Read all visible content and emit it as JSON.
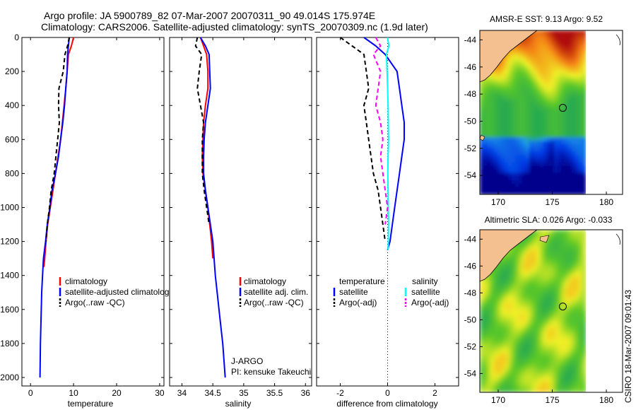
{
  "title": {
    "line1": "Argo profile: JA 5900789_82 07-Mar-2007 20070311_90 49.014S 175.974E",
    "line2": "Climatology: CARS2006. Satellite-adjusted climatology: synTS_20070309.nc (1.9d later)"
  },
  "side_label": "CSIRO 18-Mar-2007 09:01:43",
  "colors": {
    "climatology": "#ff0000",
    "satellite": "#0000ff",
    "argo": "#000000",
    "sat_salinity": "#00ffff",
    "argo_salinity": "#ff00ff",
    "land": "#f5c090"
  },
  "chart_data": [
    {
      "type": "line",
      "name": "temperature-panel",
      "xlabel": "temperature",
      "ylabel": "",
      "xlim": [
        -2,
        31
      ],
      "ylim": [
        2050,
        0
      ],
      "xticks": [
        0,
        10,
        20,
        30
      ],
      "yticks": [
        0,
        200,
        400,
        600,
        800,
        1000,
        1200,
        1400,
        1600,
        1800,
        2000
      ],
      "series": [
        {
          "name": "climatology",
          "style": "solid",
          "color": "#ff0000",
          "x": [
            10.0,
            9.5,
            8.8,
            8.5,
            8.2,
            7.8,
            7.4,
            7.0,
            6.4,
            5.8,
            5.2,
            4.6,
            4.0,
            3.6,
            3.3,
            3.1
          ],
          "y": [
            0,
            50,
            100,
            200,
            300,
            400,
            500,
            600,
            700,
            800,
            900,
            1000,
            1100,
            1200,
            1300,
            1350
          ]
        },
        {
          "name": "satellite-adjusted climatology",
          "style": "solid",
          "color": "#0000ff",
          "x": [
            9.0,
            8.8,
            8.6,
            8.5,
            8.2,
            7.9,
            7.5,
            7.0,
            6.5,
            5.8,
            5.0,
            4.5,
            3.9,
            3.5,
            3.0,
            2.8,
            2.6,
            2.5,
            2.4,
            2.3,
            2.2
          ],
          "y": [
            0,
            50,
            100,
            200,
            300,
            400,
            500,
            600,
            700,
            800,
            900,
            1000,
            1100,
            1200,
            1300,
            1400,
            1500,
            1600,
            1700,
            1800,
            2000
          ]
        },
        {
          "name": "Argo(..raw -QC)",
          "style": "dashed",
          "color": "#000000",
          "x": [
            9.0,
            8.6,
            8.0,
            7.6,
            6.6,
            6.5,
            6.7,
            6.3,
            5.9,
            5.5,
            4.8,
            4.4,
            3.9,
            3.6
          ],
          "y": [
            0,
            50,
            100,
            200,
            300,
            400,
            500,
            600,
            700,
            800,
            900,
            1000,
            1100,
            1200
          ]
        }
      ],
      "legend": [
        "climatology",
        "satellite-adjusted climatolog",
        "Argo(..raw -QC)"
      ],
      "legend_position": "lower-right"
    },
    {
      "type": "line",
      "name": "salinity-panel",
      "xlabel": "salinity",
      "ylabel": "",
      "xlim": [
        33.8,
        36.1
      ],
      "ylim": [
        2050,
        0
      ],
      "xticks": [
        34,
        34.5,
        35,
        35.5,
        36
      ],
      "series": [
        {
          "name": "climatology",
          "style": "solid",
          "color": "#ff0000",
          "x": [
            34.3,
            34.35,
            34.4,
            34.42,
            34.42,
            34.38,
            34.35,
            34.34,
            34.33,
            34.34,
            34.38,
            34.42,
            34.45,
            34.48,
            34.5
          ],
          "y": [
            0,
            50,
            100,
            200,
            300,
            400,
            500,
            600,
            700,
            800,
            900,
            1000,
            1100,
            1200,
            1300
          ]
        },
        {
          "name": "satellite adj. clim.",
          "style": "solid",
          "color": "#0000ff",
          "x": [
            34.3,
            34.38,
            34.44,
            34.45,
            34.46,
            34.42,
            34.38,
            34.36,
            34.35,
            34.35,
            34.38,
            34.42,
            34.46,
            34.5,
            34.54,
            34.57,
            34.6,
            34.63,
            34.66,
            34.7
          ],
          "y": [
            0,
            50,
            100,
            200,
            300,
            400,
            500,
            600,
            700,
            800,
            900,
            1000,
            1100,
            1200,
            1400,
            1500,
            1600,
            1700,
            1800,
            2000
          ]
        },
        {
          "name": "Argo(..raw -QC)",
          "style": "dashed",
          "color": "#000000",
          "x": [
            34.25,
            34.22,
            34.32,
            34.28,
            34.25,
            34.3,
            34.35,
            34.33,
            34.33,
            34.33,
            34.36,
            34.4,
            34.44
          ],
          "y": [
            0,
            50,
            100,
            200,
            300,
            400,
            500,
            600,
            700,
            800,
            900,
            1000,
            1100
          ]
        }
      ],
      "legend": [
        "climatology",
        "satellite adj. clim.",
        "Argo(..raw -QC)"
      ],
      "legend_position": "lower-right",
      "annotations": [
        "J-ARGO",
        "PI: kensuke Takeuchi"
      ]
    },
    {
      "type": "line",
      "name": "difference-panel",
      "xlabel": "difference from climatology",
      "ylabel": "",
      "xlim": [
        -3,
        3
      ],
      "ylim": [
        2050,
        0
      ],
      "xticks": [
        -2,
        0,
        2
      ],
      "series": [
        {
          "name": "temperature satellite",
          "style": "solid",
          "color": "#0000ff",
          "x": [
            -1.0,
            -0.5,
            -0.1,
            0.4,
            0.5,
            0.6,
            0.7,
            0.7,
            0.6,
            0.5,
            0.4,
            0.3,
            0.2,
            0.1,
            0.0
          ],
          "y": [
            0,
            50,
            100,
            200,
            300,
            400,
            500,
            600,
            700,
            800,
            900,
            1000,
            1100,
            1200,
            1250
          ]
        },
        {
          "name": "temperature Argo(-adj)",
          "style": "dashed",
          "color": "#000000",
          "x": [
            -2.0,
            -1.5,
            -1.0,
            -0.9,
            -0.8,
            -1.0,
            -0.9,
            -0.8,
            -0.7,
            -0.6,
            -0.4,
            -0.3,
            -0.2,
            -0.1
          ],
          "y": [
            0,
            50,
            100,
            200,
            300,
            400,
            500,
            600,
            700,
            800,
            900,
            1000,
            1100,
            1200
          ]
        },
        {
          "name": "salinity satellite",
          "style": "solid",
          "color": "#00ffff",
          "x": [
            0.0,
            0.05,
            -0.05,
            -0.02,
            0.0,
            0.02,
            0.03,
            0.04,
            0.02,
            0.01,
            0.02,
            0.03,
            0.04,
            0.03,
            0.02
          ],
          "y": [
            0,
            50,
            100,
            200,
            300,
            400,
            500,
            600,
            700,
            800,
            900,
            1000,
            1100,
            1200,
            1250
          ]
        },
        {
          "name": "salinity Argo(-adj)",
          "style": "dashed",
          "color": "#ff00ff",
          "x": [
            -0.5,
            -0.3,
            -0.6,
            -0.3,
            -0.4,
            -0.5,
            -0.3,
            -0.2,
            -0.3,
            -0.2,
            -0.1,
            0.0,
            -0.1
          ],
          "y": [
            0,
            50,
            100,
            200,
            300,
            400,
            500,
            600,
            700,
            800,
            900,
            1000,
            1100
          ]
        }
      ],
      "legend": {
        "temperature_header": "temperature",
        "salinity_header": "salinity",
        "temp_items": [
          "satellite",
          "Argo(-adj)"
        ],
        "sal_items": [
          "satellite",
          "Argo(-adj)"
        ]
      },
      "legend_position": "lower-center"
    },
    {
      "type": "heatmap",
      "name": "sst-map",
      "title": "AMSR-E SST: 9.13  Argo: 9.52",
      "xticks": [
        170,
        175,
        180
      ],
      "yticks": [
        -44,
        -46,
        -48,
        -50,
        -52,
        -54
      ],
      "xlim": [
        168.3,
        181.5
      ],
      "ylim": [
        -55.4,
        -43.3
      ],
      "marker": {
        "lon": 175.974,
        "lat": -49.014
      }
    },
    {
      "type": "heatmap",
      "name": "sla-map",
      "title": "Altimetric SLA: 0.026  Argo: -0.033",
      "xticks": [
        170,
        175,
        180
      ],
      "yticks": [
        -44,
        -46,
        -48,
        -50,
        -52,
        -54
      ],
      "xlim": [
        168.3,
        181.5
      ],
      "ylim": [
        -55.4,
        -43.3
      ],
      "marker": {
        "lon": 175.974,
        "lat": -49.014
      }
    }
  ]
}
